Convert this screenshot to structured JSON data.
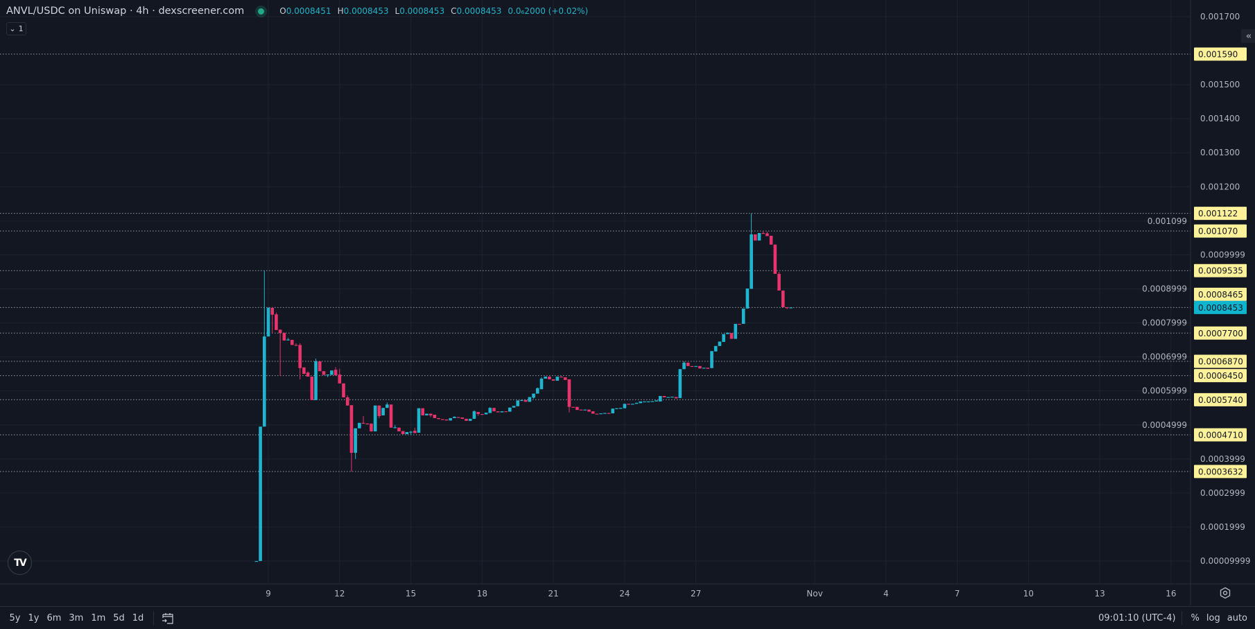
{
  "header": {
    "title": "ANVL/USDC on Uniswap · 4h · dexscreener.com",
    "ohlc": [
      {
        "label": "O",
        "value": "0.0008451"
      },
      {
        "label": "H",
        "value": "0.0008453"
      },
      {
        "label": "L",
        "value": "0.0008453"
      },
      {
        "label": "C",
        "value": "0.0008453"
      }
    ],
    "change": "0.0₆2000 (+0.02%)",
    "legend_toggle": "1"
  },
  "colors": {
    "background": "#131722",
    "up": "#1fb5cf",
    "down": "#e8336c",
    "badge": "#fdf29a",
    "current_badge": "#0fb5cf",
    "grid": "#1f2330"
  },
  "toolbar": {
    "ranges": [
      "5y",
      "1y",
      "6m",
      "3m",
      "1m",
      "5d",
      "1d"
    ],
    "clock": "09:01:10 (UTC-4)",
    "percent": "%",
    "log": "log",
    "auto": "auto"
  },
  "chart_data": {
    "type": "candlestick",
    "title": "ANVL/USDC on Uniswap · 4h",
    "interval": "4h",
    "first_candle": "Oct 8 12:00",
    "ylim": [
      9.999e-05,
      0.0017
    ],
    "grid": true,
    "x_ticks": [
      "9",
      "12",
      "15",
      "18",
      "21",
      "24",
      "27",
      "Nov",
      "4",
      "7",
      "10",
      "13",
      "16"
    ],
    "price_axis": {
      "ticks": [
        "0.001700",
        "0.001500",
        "0.001400",
        "0.001300",
        "0.001200",
        "0.001099",
        "0.0009999",
        "0.0008999",
        "0.0007999",
        "0.0006999",
        "0.0005999",
        "0.0004999",
        "0.0003999",
        "0.0002999",
        "0.0001999",
        "0.00009999"
      ]
    },
    "price_lines": [
      {
        "value": "0.001590",
        "kind": "level"
      },
      {
        "value": "0.001122",
        "kind": "level"
      },
      {
        "value": "0.001070",
        "kind": "level"
      },
      {
        "value": "0.0009535",
        "kind": "level"
      },
      {
        "value": "0.0008465",
        "kind": "marker"
      },
      {
        "value": "0.0008453",
        "kind": "current"
      },
      {
        "value": "0.0007700",
        "kind": "level"
      },
      {
        "value": "0.0006870",
        "kind": "level"
      },
      {
        "value": "0.0006450",
        "kind": "level"
      },
      {
        "value": "0.0005740",
        "kind": "level"
      },
      {
        "value": "0.0004710",
        "kind": "level"
      },
      {
        "value": "0.0003632",
        "kind": "level"
      }
    ],
    "candles_format": [
      "open",
      "high",
      "low",
      "close"
    ],
    "candles": [
      [
        0.0001,
        0.0001,
        9.99e-05,
        0.0001
      ],
      [
        0.0001,
        0.000495,
        0.0001,
        0.000495
      ],
      [
        0.000495,
        0.0009535,
        0.000495,
        0.00076
      ],
      [
        0.00076,
        0.000846,
        0.00076,
        0.000844
      ],
      [
        0.000844,
        0.000846,
        0.00077,
        0.000824
      ],
      [
        0.000825,
        0.00083,
        0.000779,
        0.000779
      ],
      [
        0.00078,
        0.00078,
        0.000644,
        0.00077
      ],
      [
        0.00077,
        0.000772,
        0.000748,
        0.000748
      ],
      [
        0.00075,
        0.000756,
        0.000748,
        0.000751
      ],
      [
        0.00075,
        0.00075,
        0.000735,
        0.000735
      ],
      [
        0.000735,
        0.00074,
        0.000733,
        0.000733
      ],
      [
        0.000735,
        0.00074,
        0.000634,
        0.000667
      ],
      [
        0.000669,
        0.000669,
        0.00065,
        0.00065
      ],
      [
        0.000654,
        0.000657,
        0.000642,
        0.000642
      ],
      [
        0.000642,
        0.000642,
        0.000573,
        0.000573
      ],
      [
        0.000573,
        0.000695,
        0.000573,
        0.000687
      ],
      [
        0.000687,
        0.000687,
        0.000658,
        0.000658
      ],
      [
        0.000658,
        0.000658,
        0.000647,
        0.000647
      ],
      [
        0.000647,
        0.000648,
        0.00064,
        0.000648
      ],
      [
        0.000647,
        0.00066,
        0.000647,
        0.00066
      ],
      [
        0.000662,
        0.00067,
        0.000646,
        0.000646
      ],
      [
        0.000648,
        0.000665,
        0.000622,
        0.000622
      ],
      [
        0.000622,
        0.000622,
        0.000581,
        0.000581
      ],
      [
        0.000581,
        0.000587,
        0.000557,
        0.000557
      ],
      [
        0.000558,
        0.000558,
        0.000363,
        0.000418
      ],
      [
        0.000418,
        0.00049,
        0.0004,
        0.00049
      ],
      [
        0.00049,
        0.000506,
        0.00049,
        0.000506
      ],
      [
        0.000506,
        0.000526,
        0.000504,
        0.000504
      ],
      [
        0.000504,
        0.000505,
        0.000503,
        0.000503
      ],
      [
        0.000504,
        0.000504,
        0.00048,
        0.000481
      ],
      [
        0.000481,
        0.000557,
        0.000481,
        0.000557
      ],
      [
        0.000557,
        0.000557,
        0.00052,
        0.000526
      ],
      [
        0.000528,
        0.00055,
        0.000528,
        0.00055
      ],
      [
        0.00055,
        0.000566,
        0.00055,
        0.00056
      ],
      [
        0.00056,
        0.00056,
        0.000492,
        0.000492
      ],
      [
        0.000492,
        0.0005,
        0.00049,
        0.000493
      ],
      [
        0.000492,
        0.000492,
        0.000481,
        0.000481
      ],
      [
        0.000482,
        0.000482,
        0.000473,
        0.000473
      ],
      [
        0.000473,
        0.000479,
        0.000473,
        0.000479
      ],
      [
        0.000479,
        0.000482,
        0.00047,
        0.00048
      ],
      [
        0.000483,
        0.000492,
        0.000476,
        0.000476
      ],
      [
        0.000477,
        0.000549,
        0.000477,
        0.000549
      ],
      [
        0.000549,
        0.000549,
        0.000528,
        0.000528
      ],
      [
        0.000528,
        0.000533,
        0.000528,
        0.000533
      ],
      [
        0.000533,
        0.000533,
        0.000523,
        0.000528
      ],
      [
        0.00053,
        0.00053,
        0.00052,
        0.00052
      ],
      [
        0.00052,
        0.00052,
        0.000517,
        0.000517
      ],
      [
        0.000517,
        0.000517,
        0.000516,
        0.000516
      ],
      [
        0.000516,
        0.000516,
        0.000513,
        0.000513
      ],
      [
        0.000513,
        0.00052,
        0.000513,
        0.00052
      ],
      [
        0.00052,
        0.000525,
        0.00052,
        0.000524
      ],
      [
        0.000523,
        0.000523,
        0.000522,
        0.000522
      ],
      [
        0.000522,
        0.000522,
        0.000518,
        0.000518
      ],
      [
        0.000518,
        0.000518,
        0.000512,
        0.000512
      ],
      [
        0.000512,
        0.000518,
        0.000512,
        0.000518
      ],
      [
        0.000518,
        0.000543,
        0.000518,
        0.00054
      ],
      [
        0.000538,
        0.000538,
        0.000527,
        0.000532
      ],
      [
        0.000532,
        0.000532,
        0.000531,
        0.000531
      ],
      [
        0.000531,
        0.000536,
        0.000531,
        0.000536
      ],
      [
        0.000535,
        0.000552,
        0.000535,
        0.00055
      ],
      [
        0.00055,
        0.00055,
        0.00054,
        0.00054
      ],
      [
        0.00054,
        0.00054,
        0.000537,
        0.000537
      ],
      [
        0.000537,
        0.00054,
        0.000537,
        0.00054
      ],
      [
        0.00054,
        0.00054,
        0.000539,
        0.000539
      ],
      [
        0.000539,
        0.000551,
        0.000539,
        0.000551
      ],
      [
        0.000551,
        0.000556,
        0.000551,
        0.000556
      ],
      [
        0.000555,
        0.000572,
        0.000555,
        0.000572
      ],
      [
        0.000572,
        0.000574,
        0.000572,
        0.000573
      ],
      [
        0.000573,
        0.000574,
        0.000568,
        0.000568
      ],
      [
        0.000568,
        0.000582,
        0.000568,
        0.000582
      ],
      [
        0.00058,
        0.000592,
        0.000577,
        0.000592
      ],
      [
        0.000592,
        0.00061,
        0.000592,
        0.000608
      ],
      [
        0.000605,
        0.00064,
        0.000605,
        0.000636
      ],
      [
        0.000636,
        0.000642,
        0.000636,
        0.000642
      ],
      [
        0.000642,
        0.000642,
        0.000634,
        0.000634
      ],
      [
        0.000634,
        0.000634,
        0.00063,
        0.00063
      ],
      [
        0.00063,
        0.000642,
        0.00063,
        0.000642
      ],
      [
        0.000642,
        0.000643,
        0.00064,
        0.00064
      ],
      [
        0.00064,
        0.00064,
        0.000632,
        0.000632
      ],
      [
        0.000634,
        0.000634,
        0.000537,
        0.000553
      ],
      [
        0.000553,
        0.000553,
        0.000552,
        0.000552
      ],
      [
        0.000553,
        0.000553,
        0.000544,
        0.000544
      ],
      [
        0.000545,
        0.000545,
        0.000544,
        0.000544
      ],
      [
        0.000544,
        0.000545,
        0.000544,
        0.000545
      ],
      [
        0.000545,
        0.000545,
        0.000539,
        0.000539
      ],
      [
        0.00054,
        0.00054,
        0.000533,
        0.000533
      ],
      [
        0.000533,
        0.000533,
        0.000532,
        0.000532
      ],
      [
        0.000532,
        0.000534,
        0.000532,
        0.000534
      ],
      [
        0.000534,
        0.000535,
        0.000534,
        0.000535
      ],
      [
        0.000535,
        0.000535,
        0.000534,
        0.000534
      ],
      [
        0.000534,
        0.000548,
        0.000534,
        0.000548
      ],
      [
        0.000548,
        0.000549,
        0.000548,
        0.000549
      ],
      [
        0.000549,
        0.00055,
        0.000549,
        0.00055
      ],
      [
        0.000549,
        0.000562,
        0.000549,
        0.000562
      ],
      [
        0.000562,
        0.000562,
        0.000561,
        0.000561
      ],
      [
        0.000561,
        0.000562,
        0.000561,
        0.000562
      ],
      [
        0.000562,
        0.000565,
        0.000562,
        0.000565
      ],
      [
        0.000564,
        0.000569,
        0.000564,
        0.000569
      ],
      [
        0.000568,
        0.000569,
        0.000568,
        0.000569
      ],
      [
        0.000568,
        0.000569,
        0.000568,
        0.000569
      ],
      [
        0.000569,
        0.00057,
        0.000569,
        0.00057
      ],
      [
        0.000569,
        0.000572,
        0.000569,
        0.000572
      ],
      [
        0.000569,
        0.000585,
        0.000569,
        0.000585
      ],
      [
        0.000585,
        0.000585,
        0.000581,
        0.000581
      ],
      [
        0.000581,
        0.000582,
        0.000581,
        0.000582
      ],
      [
        0.000582,
        0.000583,
        0.000582,
        0.000583
      ],
      [
        0.000582,
        0.000582,
        0.000578,
        0.000578
      ],
      [
        0.000579,
        0.000664,
        0.000579,
        0.000664
      ],
      [
        0.000664,
        0.000687,
        0.000664,
        0.000683
      ],
      [
        0.000683,
        0.000683,
        0.000673,
        0.000673
      ],
      [
        0.000673,
        0.000673,
        0.000672,
        0.000672
      ],
      [
        0.000672,
        0.000673,
        0.000672,
        0.000673
      ],
      [
        0.000673,
        0.000673,
        0.000666,
        0.000666
      ],
      [
        0.000666,
        0.000668,
        0.000666,
        0.000668
      ],
      [
        0.000668,
        0.000668,
        0.000665,
        0.000665
      ],
      [
        0.000667,
        0.000717,
        0.000667,
        0.000717
      ],
      [
        0.000716,
        0.000732,
        0.000716,
        0.000732
      ],
      [
        0.000732,
        0.000745,
        0.000732,
        0.000745
      ],
      [
        0.000744,
        0.000767,
        0.000744,
        0.000767
      ],
      [
        0.000767,
        0.000772,
        0.000767,
        0.000771
      ],
      [
        0.00077,
        0.00077,
        0.000753,
        0.000753
      ],
      [
        0.000753,
        0.000797,
        0.000753,
        0.000797
      ],
      [
        0.000797,
        0.000797,
        0.000796,
        0.000796
      ],
      [
        0.000797,
        0.000842,
        0.000797,
        0.000842
      ],
      [
        0.000842,
        0.000901,
        0.000842,
        0.000901
      ],
      [
        0.0009,
        0.001122,
        0.0009,
        0.00106
      ],
      [
        0.00106,
        0.00106,
        0.001042,
        0.001042
      ],
      [
        0.001042,
        0.001064,
        0.001042,
        0.001064
      ],
      [
        0.001064,
        0.00107,
        0.001062,
        0.001062
      ],
      [
        0.001063,
        0.001068,
        0.001055,
        0.001055
      ],
      [
        0.001056,
        0.001056,
        0.00103,
        0.00103
      ],
      [
        0.00103,
        0.00103,
        0.000944,
        0.000944
      ],
      [
        0.000944,
        0.00095,
        0.000895,
        0.000895
      ],
      [
        0.000895,
        0.000895,
        0.000846,
        0.000846
      ],
      [
        0.000846,
        0.000846,
        0.00084,
        0.0008451
      ],
      [
        0.0008451,
        0.0008453,
        0.0008453,
        0.0008453
      ]
    ]
  }
}
